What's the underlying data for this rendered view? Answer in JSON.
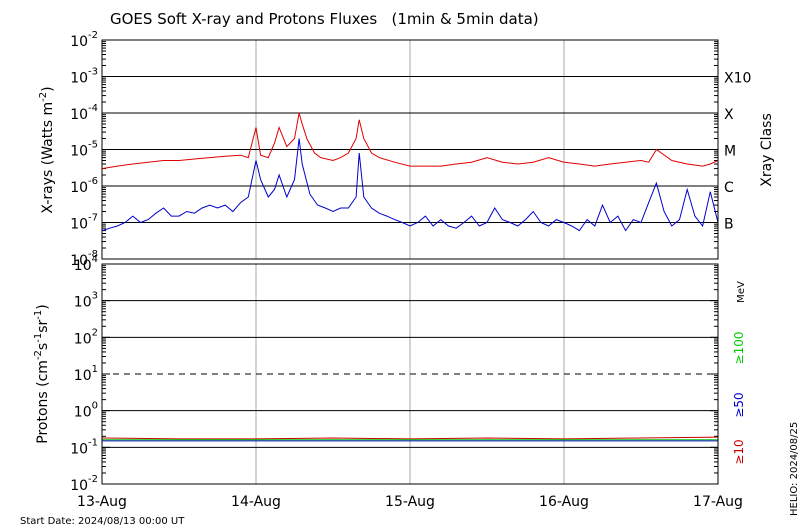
{
  "title": "GOES Soft X-ray and Protons Fluxes   (1min & 5min data)",
  "footer": {
    "start_date": "Start Date: 2024/08/13 00:00 UT",
    "helio": "HELIO: 2024/08/25"
  },
  "x_axis": {
    "ticks": [
      "13-Aug",
      "14-Aug",
      "15-Aug",
      "16-Aug",
      "17-Aug"
    ]
  },
  "colors": {
    "xray_long": "#e00000",
    "xray_short": "#0000cc",
    "p10": "#cc0000",
    "p50": "#0000cc",
    "p100": "#00cc00",
    "grid": "#000000",
    "day_lines": "#aaaaaa"
  },
  "chart_data": [
    {
      "type": "line",
      "panel": "xray",
      "ylabel": "X-rays (Watts m-2)",
      "ylabel_parts": {
        "prefix": "X-rays (Watts m",
        "sup": "-2",
        "suffix": ")"
      },
      "y_scale": "log",
      "ylim": [
        1e-08,
        0.01
      ],
      "xlim": [
        "2024-08-13",
        "2024-08-17"
      ],
      "y_tick_labels": [
        "10-8",
        "10-7",
        "10-6",
        "10-5",
        "10-4",
        "10-3",
        "10-2"
      ],
      "y_ticks": [
        {
          "base": "10",
          "exp": "-8"
        },
        {
          "base": "10",
          "exp": "-7"
        },
        {
          "base": "10",
          "exp": "-6"
        },
        {
          "base": "10",
          "exp": "-5"
        },
        {
          "base": "10",
          "exp": "-4"
        },
        {
          "base": "10",
          "exp": "-3"
        },
        {
          "base": "10",
          "exp": "-2"
        }
      ],
      "right_axis_label": "Xray Class",
      "class_labels": [
        "X10",
        "X",
        "M",
        "C",
        "B"
      ],
      "class_values": [
        0.001,
        0.0001,
        1e-05,
        1e-06,
        1e-07
      ],
      "grid_lines": [
        1e-07,
        1e-06,
        1e-05,
        0.0001,
        0.001
      ],
      "series": [
        {
          "x": [
            13.0,
            13.1,
            13.2,
            13.3,
            13.4,
            13.5,
            13.6,
            13.7,
            13.8,
            13.9,
            13.95,
            14.0,
            14.03,
            14.08,
            14.12,
            14.15,
            14.2,
            14.25,
            14.28,
            14.3,
            14.33,
            14.38,
            14.42,
            14.5,
            14.55,
            14.6,
            14.65,
            14.67,
            14.7,
            14.75,
            14.8,
            14.9,
            15.0,
            15.1,
            15.2,
            15.3,
            15.4,
            15.5,
            15.6,
            15.7,
            15.8,
            15.9,
            16.0,
            16.1,
            16.2,
            16.3,
            16.4,
            16.5,
            16.55,
            16.6,
            16.7,
            16.8,
            16.9,
            16.95,
            17.0
          ],
          "values": [
            3e-06,
            3.5e-06,
            4e-06,
            4.5e-06,
            5e-06,
            5e-06,
            5.5e-06,
            6e-06,
            6.5e-06,
            7e-06,
            6e-06,
            4e-05,
            7e-06,
            6e-06,
            1.5e-05,
            4e-05,
            1.2e-05,
            2e-05,
            0.0001,
            5e-05,
            2e-05,
            8e-06,
            6e-06,
            5e-06,
            6e-06,
            8e-06,
            2e-05,
            6.5e-05,
            2e-05,
            8e-06,
            6e-06,
            4.5e-06,
            3.5e-06,
            3.5e-06,
            3.5e-06,
            4e-06,
            4.5e-06,
            6e-06,
            4.5e-06,
            4e-06,
            4.5e-06,
            6e-06,
            4.5e-06,
            4e-06,
            3.5e-06,
            4e-06,
            4.5e-06,
            5e-06,
            4.5e-06,
            1e-05,
            5e-06,
            4e-06,
            3.5e-06,
            4e-06,
            5e-06
          ]
        },
        {
          "x": [
            13.0,
            13.05,
            13.1,
            13.15,
            13.2,
            13.25,
            13.3,
            13.35,
            13.4,
            13.45,
            13.5,
            13.55,
            13.6,
            13.65,
            13.7,
            13.75,
            13.8,
            13.85,
            13.9,
            13.95,
            14.0,
            14.03,
            14.08,
            14.12,
            14.15,
            14.2,
            14.25,
            14.28,
            14.3,
            14.35,
            14.4,
            14.45,
            14.5,
            14.55,
            14.6,
            14.65,
            14.67,
            14.7,
            14.75,
            14.8,
            14.85,
            14.9,
            14.95,
            15.0,
            15.05,
            15.1,
            15.15,
            15.2,
            15.25,
            15.3,
            15.35,
            15.4,
            15.45,
            15.5,
            15.55,
            15.6,
            15.65,
            15.7,
            15.75,
            15.8,
            15.85,
            15.9,
            15.95,
            16.0,
            16.05,
            16.1,
            16.15,
            16.2,
            16.25,
            16.3,
            16.35,
            16.4,
            16.45,
            16.5,
            16.55,
            16.6,
            16.65,
            16.7,
            16.75,
            16.8,
            16.85,
            16.9,
            16.95,
            17.0
          ],
          "values": [
            6e-08,
            7e-08,
            8e-08,
            1e-07,
            1.5e-07,
            1e-07,
            1.2e-07,
            1.8e-07,
            2.5e-07,
            1.5e-07,
            1.5e-07,
            2e-07,
            1.8e-07,
            2.5e-07,
            3e-07,
            2.5e-07,
            3e-07,
            2e-07,
            3.5e-07,
            5e-07,
            5e-06,
            1.5e-06,
            5e-07,
            8e-07,
            2e-06,
            5e-07,
            1.5e-06,
            2e-05,
            4e-06,
            6e-07,
            3e-07,
            2.5e-07,
            2e-07,
            2.5e-07,
            2.5e-07,
            5e-07,
            8e-06,
            5e-07,
            2.5e-07,
            1.8e-07,
            1.5e-07,
            1.2e-07,
            1e-07,
            8e-08,
            1e-07,
            1.5e-07,
            8e-08,
            1.2e-07,
            8e-08,
            7e-08,
            1e-07,
            1.5e-07,
            8e-08,
            1e-07,
            2.5e-07,
            1.2e-07,
            1e-07,
            8e-08,
            1.2e-07,
            2e-07,
            1e-07,
            8e-08,
            1.2e-07,
            1e-07,
            8e-08,
            6e-08,
            1.2e-07,
            8e-08,
            3e-07,
            1e-07,
            1.5e-07,
            6e-08,
            1.2e-07,
            1e-07,
            3.5e-07,
            1.2e-06,
            2e-07,
            8e-08,
            1.2e-07,
            8e-07,
            1.5e-07,
            8e-08,
            7e-07,
            1e-07
          ]
        }
      ]
    },
    {
      "type": "line",
      "panel": "protons",
      "ylabel": "Protons (cm-2s-1sr-1)",
      "ylabel_parts": [
        {
          "t": "Protons (cm",
          "sup": false
        },
        {
          "t": "-2",
          "sup": true
        },
        {
          "t": "s",
          "sup": false
        },
        {
          "t": "-1",
          "sup": true
        },
        {
          "t": "sr",
          "sup": false
        },
        {
          "t": "-1",
          "sup": true
        },
        {
          "t": ")",
          "sup": false
        }
      ],
      "y_scale": "log",
      "ylim": [
        0.01,
        10000
      ],
      "xlim": [
        "2024-08-13",
        "2024-08-17"
      ],
      "y_tick_labels": [
        "10-2",
        "10-1",
        "100",
        "101",
        "102",
        "103",
        "104"
      ],
      "y_ticks": [
        {
          "base": "10",
          "exp": "-2"
        },
        {
          "base": "10",
          "exp": "-1"
        },
        {
          "base": "10",
          "exp": "0"
        },
        {
          "base": "10",
          "exp": "1"
        },
        {
          "base": "10",
          "exp": "2"
        },
        {
          "base": "10",
          "exp": "3"
        },
        {
          "base": "10",
          "exp": "4"
        }
      ],
      "grid_lines": [
        0.1,
        1,
        100,
        1000
      ],
      "dashed_line": 10,
      "energy_unit": "MeV",
      "legend": [
        "≥100",
        "≥50",
        "≥10"
      ],
      "series": [
        {
          "name": "≥10",
          "x": [
            13.0,
            13.5,
            14.0,
            14.5,
            15.0,
            15.5,
            16.0,
            16.5,
            17.0
          ],
          "values": [
            0.18,
            0.17,
            0.17,
            0.18,
            0.17,
            0.18,
            0.17,
            0.18,
            0.19
          ]
        },
        {
          "name": "≥50",
          "x": [
            13.0,
            13.5,
            14.0,
            14.5,
            15.0,
            15.5,
            16.0,
            16.5,
            17.0
          ],
          "values": [
            0.15,
            0.15,
            0.15,
            0.15,
            0.15,
            0.15,
            0.15,
            0.15,
            0.15
          ]
        },
        {
          "name": "≥100",
          "x": [
            13.0,
            13.5,
            14.0,
            14.5,
            15.0,
            15.5,
            16.0,
            16.5,
            17.0
          ],
          "values": [
            0.16,
            0.16,
            0.16,
            0.16,
            0.16,
            0.16,
            0.16,
            0.16,
            0.16
          ]
        }
      ]
    }
  ]
}
